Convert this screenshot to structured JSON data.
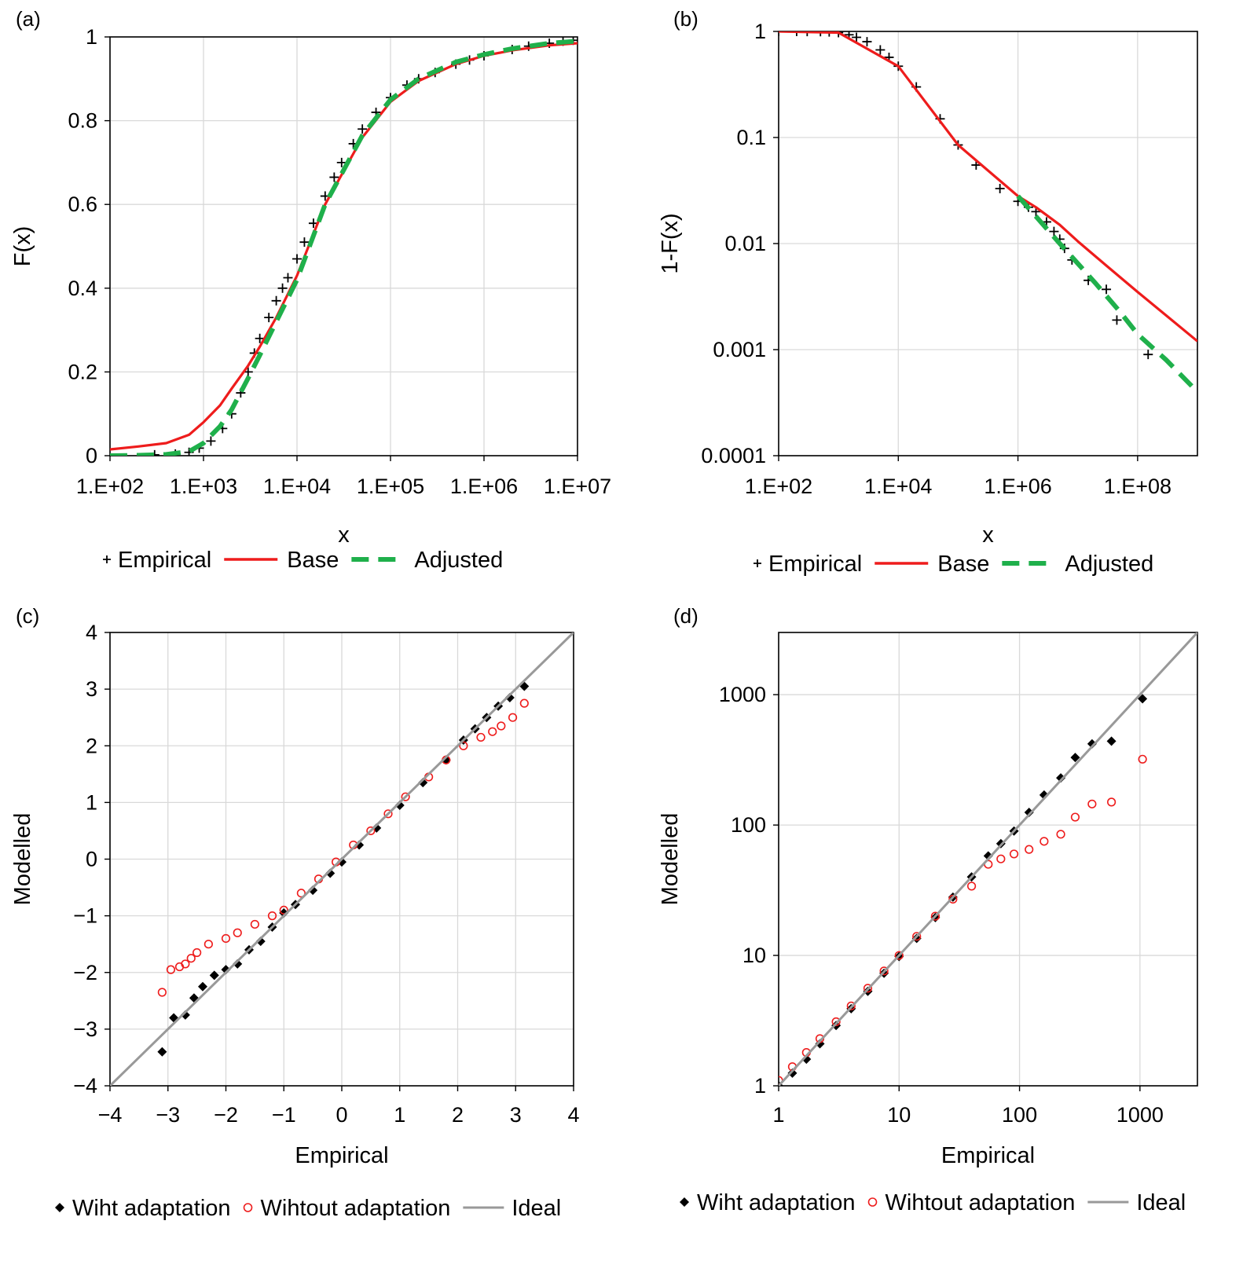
{
  "colors": {
    "base": "#ee1c1c",
    "adjusted": "#1fb04b",
    "empirical": "#000000",
    "ideal": "#999999",
    "without": "#ee1c1c",
    "grid": "#d9d9d9"
  },
  "chart_data": [
    {
      "panel": "(a)",
      "type": "line",
      "xscale": "log",
      "xlim": [
        100,
        10000000
      ],
      "ylim": [
        0,
        1
      ],
      "xlabel": "x",
      "ylabel": "F(x)",
      "xticks": [
        "1.E+02",
        "1.E+03",
        "1.E+04",
        "1.E+05",
        "1.E+06",
        "1.E+07"
      ],
      "yticks": [
        "0",
        "0.2",
        "0.4",
        "0.6",
        "0.8",
        "1"
      ],
      "legend": [
        {
          "label": "Empirical",
          "style": "plus"
        },
        {
          "label": "Base",
          "style": "solid"
        },
        {
          "label": "Adjusted",
          "style": "dashed"
        }
      ],
      "series": [
        {
          "name": "Empirical",
          "x": [
            300,
            500,
            700,
            900,
            1200,
            1600,
            2000,
            2500,
            3000,
            3500,
            4000,
            5000,
            6000,
            7000,
            8000,
            10000,
            12000,
            15000,
            20000,
            25000,
            30000,
            40000,
            50000,
            70000,
            100000,
            150000,
            200000,
            300000,
            500000,
            700000,
            1000000,
            2000000,
            3000000,
            5000000,
            7000000,
            9000000
          ],
          "y": [
            0.002,
            0.004,
            0.008,
            0.018,
            0.035,
            0.065,
            0.1,
            0.15,
            0.2,
            0.245,
            0.28,
            0.33,
            0.37,
            0.4,
            0.425,
            0.47,
            0.51,
            0.555,
            0.62,
            0.665,
            0.7,
            0.745,
            0.78,
            0.82,
            0.855,
            0.885,
            0.9,
            0.915,
            0.935,
            0.945,
            0.955,
            0.97,
            0.978,
            0.985,
            0.99,
            0.992
          ]
        },
        {
          "name": "Base",
          "x": [
            100,
            200,
            400,
            700,
            1000,
            1500,
            2000,
            3000,
            4000,
            6000,
            10000,
            20000,
            50000,
            100000,
            200000,
            500000,
            1000000,
            2000000,
            5000000,
            10000000
          ],
          "y": [
            0.015,
            0.022,
            0.03,
            0.05,
            0.08,
            0.12,
            0.16,
            0.215,
            0.26,
            0.33,
            0.43,
            0.6,
            0.76,
            0.845,
            0.895,
            0.935,
            0.955,
            0.968,
            0.98,
            0.985
          ]
        },
        {
          "name": "Adjusted",
          "x": [
            100,
            200,
            400,
            700,
            1000,
            1500,
            2000,
            3000,
            4000,
            6000,
            10000,
            20000,
            50000,
            100000,
            200000,
            500000,
            1000000,
            2000000,
            5000000,
            10000000
          ],
          "y": [
            0.0,
            0.001,
            0.003,
            0.01,
            0.03,
            0.07,
            0.11,
            0.185,
            0.24,
            0.32,
            0.42,
            0.6,
            0.765,
            0.85,
            0.9,
            0.94,
            0.958,
            0.972,
            0.985,
            0.99
          ]
        }
      ]
    },
    {
      "panel": "(b)",
      "type": "line",
      "xscale": "log",
      "yscale": "log",
      "xlim": [
        100,
        1000000000
      ],
      "ylim": [
        0.0001,
        1
      ],
      "xlabel": "x",
      "ylabel": "1-F(x)",
      "xticks": [
        "1.E+02",
        "1.E+04",
        "1.E+06",
        "1.E+08"
      ],
      "yticks": [
        "0.0001",
        "0.001",
        "0.01",
        "0.1",
        "1"
      ],
      "legend": [
        {
          "label": "Empirical",
          "style": "plus"
        },
        {
          "label": "Base",
          "style": "solid"
        },
        {
          "label": "Adjusted",
          "style": "dashed"
        }
      ],
      "series": [
        {
          "name": "Empirical",
          "x": [
            100,
            200,
            300,
            500,
            700,
            1000,
            1500,
            2000,
            3000,
            5000,
            7000,
            10000,
            20000,
            50000,
            100000,
            200000,
            500000,
            1000000,
            1500000,
            2000000,
            3000000,
            4000000,
            5000000,
            6000000,
            8000000,
            15000000,
            30000000,
            45000000,
            150000000
          ],
          "y": [
            1.0,
            0.999,
            0.998,
            0.996,
            0.99,
            0.975,
            0.93,
            0.88,
            0.8,
            0.67,
            0.57,
            0.47,
            0.3,
            0.15,
            0.085,
            0.055,
            0.033,
            0.025,
            0.022,
            0.02,
            0.016,
            0.013,
            0.011,
            0.009,
            0.007,
            0.0045,
            0.0037,
            0.0019,
            0.0009
          ]
        },
        {
          "name": "Base",
          "x": [
            100,
            1000,
            10000,
            100000,
            1000000,
            2000000,
            5000000,
            10000000,
            30000000,
            100000000,
            300000000,
            1000000000
          ],
          "y": [
            1.0,
            0.975,
            0.47,
            0.085,
            0.028,
            0.022,
            0.015,
            0.0105,
            0.0062,
            0.0035,
            0.0021,
            0.0012
          ]
        },
        {
          "name": "Adjusted",
          "x": [
            1000000,
            2000000,
            5000000,
            10000000,
            20000000,
            50000000,
            100000000,
            300000000,
            1000000000
          ],
          "y": [
            0.028,
            0.018,
            0.01,
            0.0065,
            0.0042,
            0.0023,
            0.0014,
            0.0008,
            0.0004
          ]
        }
      ]
    },
    {
      "panel": "(c)",
      "type": "scatter",
      "xlim": [
        -4,
        4
      ],
      "ylim": [
        -4,
        4
      ],
      "xlabel": "Empirical",
      "ylabel": "Modelled",
      "xticks": [
        "−4",
        "−3",
        "−2",
        "−1",
        "0",
        "1",
        "2",
        "3",
        "4"
      ],
      "yticks": [
        "−4",
        "−3",
        "−2",
        "−1",
        "0",
        "1",
        "2",
        "3",
        "4"
      ],
      "legend": [
        {
          "label": "Wiht adaptation",
          "style": "diamond"
        },
        {
          "label": "Wihtout adaptation",
          "style": "circle"
        },
        {
          "label": "Ideal",
          "style": "line"
        }
      ],
      "series": [
        {
          "name": "Wiht adaptation",
          "x": [
            -3.1,
            -2.9,
            -2.7,
            -2.55,
            -2.4,
            -2.2,
            -2.0,
            -1.8,
            -1.6,
            -1.4,
            -1.2,
            -1.0,
            -0.8,
            -0.5,
            -0.2,
            0.0,
            0.3,
            0.6,
            1.0,
            1.4,
            1.8,
            2.1,
            2.3,
            2.5,
            2.7,
            2.9,
            3.15
          ],
          "y": [
            -3.4,
            -2.8,
            -2.75,
            -2.45,
            -2.25,
            -2.05,
            -1.95,
            -1.85,
            -1.6,
            -1.45,
            -1.2,
            -0.95,
            -0.8,
            -0.55,
            -0.25,
            -0.05,
            0.25,
            0.55,
            0.95,
            1.35,
            1.75,
            2.1,
            2.3,
            2.5,
            2.7,
            2.85,
            3.05
          ]
        },
        {
          "name": "Wihtout adaptation",
          "x": [
            -3.1,
            -2.95,
            -2.8,
            -2.7,
            -2.6,
            -2.5,
            -2.3,
            -2.0,
            -1.8,
            -1.5,
            -1.2,
            -1.0,
            -0.7,
            -0.4,
            -0.1,
            0.2,
            0.5,
            0.8,
            1.1,
            1.5,
            1.8,
            2.1,
            2.4,
            2.6,
            2.75,
            2.95,
            3.15
          ],
          "y": [
            -2.35,
            -1.95,
            -1.9,
            -1.85,
            -1.75,
            -1.65,
            -1.5,
            -1.4,
            -1.3,
            -1.15,
            -1.0,
            -0.9,
            -0.6,
            -0.35,
            -0.05,
            0.25,
            0.5,
            0.8,
            1.1,
            1.45,
            1.75,
            2.0,
            2.15,
            2.25,
            2.35,
            2.5,
            2.75
          ]
        },
        {
          "name": "Ideal",
          "x": [
            -4,
            4
          ],
          "y": [
            -4,
            4
          ]
        }
      ]
    },
    {
      "panel": "(d)",
      "type": "scatter",
      "xscale": "log",
      "yscale": "log",
      "xlim": [
        1,
        3000
      ],
      "ylim": [
        1,
        3000
      ],
      "xlabel": "Empirical",
      "ylabel": "Modelled",
      "xticks": [
        "1",
        "10",
        "100",
        "1000"
      ],
      "yticks": [
        "1",
        "10",
        "100",
        "1000"
      ],
      "legend": [
        {
          "label": "Wiht adaptation",
          "style": "diamond"
        },
        {
          "label": "Wihtout adaptation",
          "style": "circle"
        },
        {
          "label": "Ideal",
          "style": "line"
        }
      ],
      "series": [
        {
          "name": "Wiht adaptation",
          "x": [
            1.0,
            1.3,
            1.7,
            2.2,
            3.0,
            4.0,
            5.5,
            7.5,
            10,
            14,
            20,
            28,
            40,
            55,
            70,
            90,
            120,
            160,
            220,
            290,
            400,
            580,
            1050
          ],
          "y": [
            0.95,
            1.25,
            1.6,
            2.1,
            2.9,
            3.9,
            5.3,
            7.3,
            9.8,
            13.5,
            19.5,
            28,
            40,
            58,
            72,
            90,
            125,
            170,
            230,
            330,
            420,
            440,
            930
          ]
        },
        {
          "name": "Wihtout adaptation",
          "x": [
            1.0,
            1.3,
            1.7,
            2.2,
            3.0,
            4.0,
            5.5,
            7.5,
            10,
            14,
            20,
            28,
            40,
            55,
            70,
            90,
            120,
            160,
            220,
            290,
            400,
            580,
            1050
          ],
          "y": [
            1.1,
            1.4,
            1.8,
            2.3,
            3.1,
            4.1,
            5.6,
            7.6,
            10,
            14,
            20,
            27,
            34,
            50,
            55,
            60,
            65,
            75,
            85,
            115,
            145,
            150,
            320
          ]
        },
        {
          "name": "Ideal",
          "x": [
            1,
            3000
          ],
          "y": [
            1,
            3000
          ]
        }
      ]
    }
  ]
}
